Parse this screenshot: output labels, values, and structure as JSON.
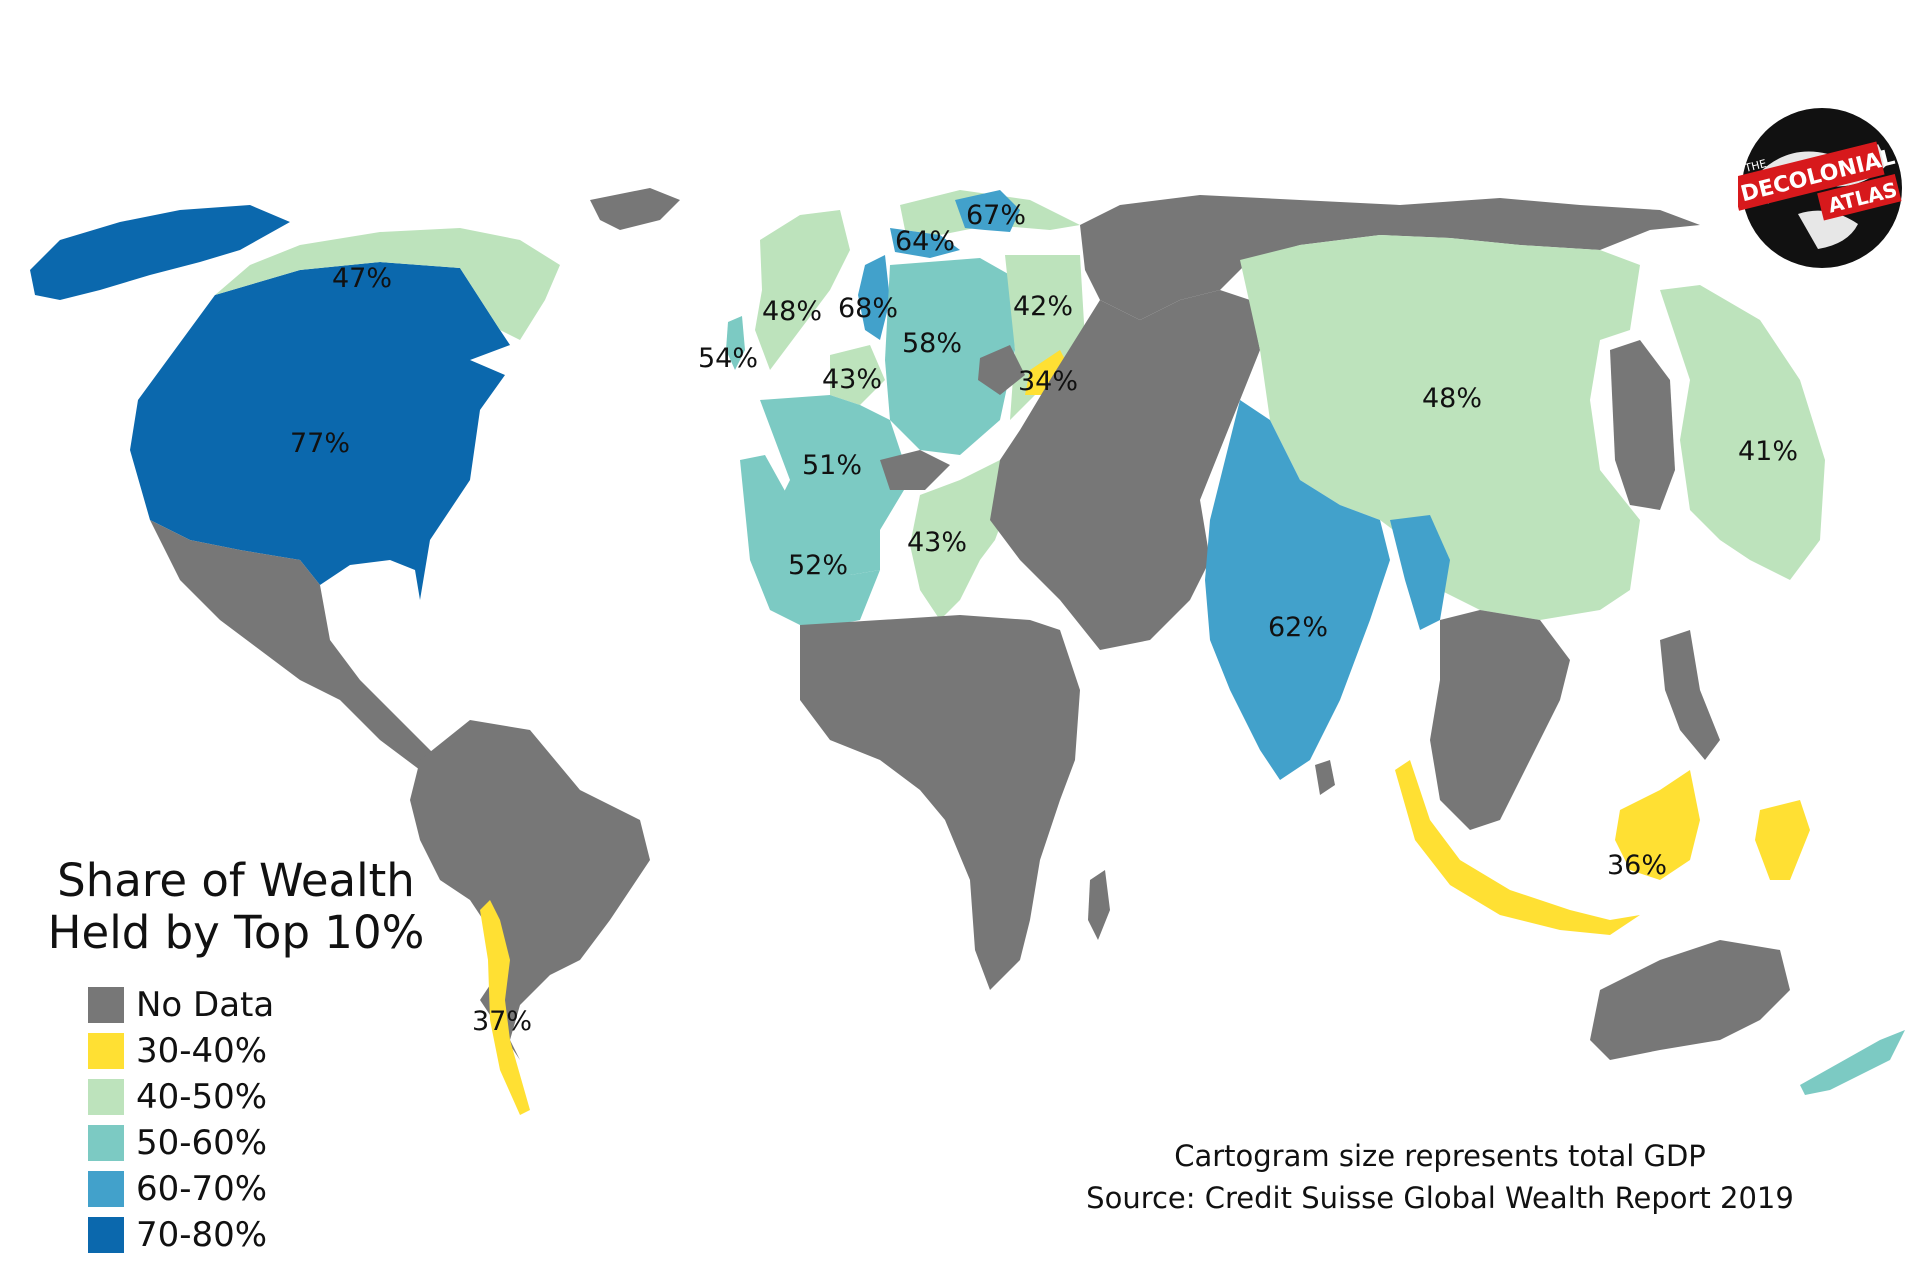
{
  "colors": {
    "no_data": "#777777",
    "r30_40": "#ffe033",
    "r40_50": "#bde3bc",
    "r50_60": "#7ccac3",
    "r60_70": "#42a1cb",
    "r70_80": "#0b68ad",
    "logo_red": "#d7191c"
  },
  "legend": {
    "title_line1": "Share of Wealth",
    "title_line2": "Held by Top 10%",
    "items": [
      {
        "label": "No Data",
        "color": "#777777"
      },
      {
        "label": "30-40%",
        "color": "#ffe033"
      },
      {
        "label": "40-50%",
        "color": "#bde3bc"
      },
      {
        "label": "50-60%",
        "color": "#7ccac3"
      },
      {
        "label": "60-70%",
        "color": "#42a1cb"
      },
      {
        "label": "70-80%",
        "color": "#0b68ad"
      }
    ]
  },
  "caption": {
    "line1": "Cartogram size represents total GDP",
    "line2": "Source: Credit Suisse Global Wealth Report 2019"
  },
  "logo": {
    "the": "THE",
    "decolonial": "DECOLONIAL",
    "atlas": "ATLAS"
  },
  "map_labels": {
    "usa": "77%",
    "canada": "47%",
    "chile": "37%",
    "ireland": "54%",
    "uk": "48%",
    "netherlands": "68%",
    "belgium": "43%",
    "germany": "58%",
    "poland": "42%",
    "slovakia": "34%",
    "france": "51%",
    "spain": "52%",
    "italy": "43%",
    "sweden": "64%",
    "finland": "67%",
    "china": "48%",
    "japan": "41%",
    "india": "62%",
    "indonesia": "36%"
  }
}
